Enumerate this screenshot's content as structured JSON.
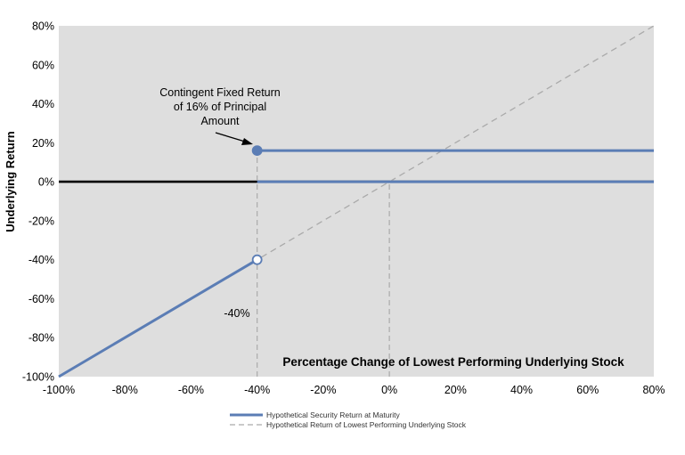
{
  "chart_data": {
    "type": "line",
    "xlabel": "Percentage Change of Lowest Performing Underlying Stock",
    "ylabel": "Underlying Return",
    "xlim": [
      -100,
      80
    ],
    "ylim": [
      -100,
      80
    ],
    "x_ticks": [
      "-100%",
      "-80%",
      "-60%",
      "-40%",
      "-20%",
      "0%",
      "20%",
      "40%",
      "60%",
      "80%"
    ],
    "y_ticks": [
      "80%",
      "60%",
      "40%",
      "20%",
      "0%",
      "-20%",
      "-40%",
      "-60%",
      "-80%",
      "-100%"
    ],
    "grid": false,
    "legend_placement": "bottom",
    "series": [
      {
        "name": "Hypothetical Security Return at Maturity",
        "color": "#5b7db5",
        "style": "solid",
        "segments": [
          [
            [
              -100,
              -100
            ],
            [
              -40,
              -40
            ]
          ],
          [
            [
              -40,
              16
            ],
            [
              80,
              16
            ]
          ],
          [
            [
              -40,
              0
            ],
            [
              80,
              0
            ]
          ]
        ],
        "markers": [
          {
            "x": -40,
            "y": 16,
            "fill": "filled"
          },
          {
            "x": -40,
            "y": -40,
            "fill": "open"
          }
        ]
      },
      {
        "name": "Hypothetical Return of Lowest Performing Underlying Stock",
        "color": "#aaaaaa",
        "style": "dashed",
        "points": [
          [
            -100,
            -100
          ],
          [
            80,
            80
          ]
        ]
      }
    ],
    "reference_lines": [
      {
        "type": "horizontal",
        "y": 0,
        "color": "#000000"
      },
      {
        "type": "vertical",
        "x": -40,
        "y_from": -100,
        "y_to": 16,
        "style": "dashed"
      },
      {
        "type": "vertical",
        "x": 0,
        "y_from": -100,
        "y_to": 0,
        "style": "dashed"
      }
    ],
    "annotations": {
      "contingent_lines": [
        "Contingent Fixed Return",
        "of 16% of Principal",
        "Amount"
      ],
      "threshold_label": "-40%"
    },
    "colors": {
      "plot_background": "#dedede",
      "security_line": "#5b7db5",
      "stock_line": "#aaaaaa",
      "axis_line": "#000000"
    }
  }
}
